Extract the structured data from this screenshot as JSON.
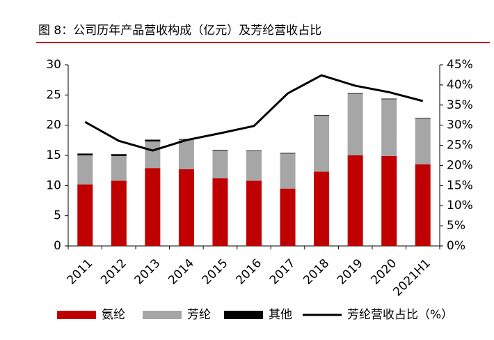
{
  "chart_data": {
    "type": "bar",
    "title": "图 8：公司历年产品营收构成（亿元）及芳纶营收占比",
    "categories": [
      "2011",
      "2012",
      "2013",
      "2014",
      "2015",
      "2016",
      "2017",
      "2018",
      "2019",
      "2020",
      "2021H1"
    ],
    "series": [
      {
        "name": "氨纶",
        "type": "bar",
        "color": "#c00000",
        "values": [
          10.2,
          10.8,
          12.9,
          12.7,
          11.2,
          10.8,
          9.5,
          12.3,
          15.0,
          14.9,
          13.5
        ]
      },
      {
        "name": "芳纶",
        "type": "bar",
        "color": "#a6a6a6",
        "values": [
          4.8,
          4.1,
          4.4,
          4.9,
          4.6,
          4.9,
          5.8,
          9.3,
          10.2,
          9.4,
          7.6
        ]
      },
      {
        "name": "其他",
        "type": "bar",
        "color": "#000000",
        "values": [
          0.3,
          0.3,
          0.3,
          0.1,
          0.1,
          0.1,
          0.1,
          0.1,
          0.1,
          0.1,
          0.1
        ]
      },
      {
        "name": "芳纶营收占比（%）",
        "type": "line",
        "axis": "y2",
        "color": "#000000",
        "values": [
          30.8,
          26.1,
          23.7,
          26.3,
          28.0,
          29.8,
          37.9,
          42.4,
          39.8,
          38.2,
          36.0
        ]
      }
    ],
    "ylim": [
      0,
      30
    ],
    "yticks": [
      0,
      5,
      10,
      15,
      20,
      25,
      30
    ],
    "y2lim": [
      0,
      45
    ],
    "y2ticks": [
      {
        "value": 0,
        "label": "0%"
      },
      {
        "value": 5,
        "label": "5%"
      },
      {
        "value": 10,
        "label": "10%"
      },
      {
        "value": 15,
        "label": "15%"
      },
      {
        "value": 20,
        "label": "20%"
      },
      {
        "value": 25,
        "label": "25%"
      },
      {
        "value": 30,
        "label": "30%"
      },
      {
        "value": 35,
        "label": "35%"
      },
      {
        "value": 40,
        "label": "40%"
      },
      {
        "value": 45,
        "label": "45%"
      }
    ],
    "legend": "bottom"
  }
}
